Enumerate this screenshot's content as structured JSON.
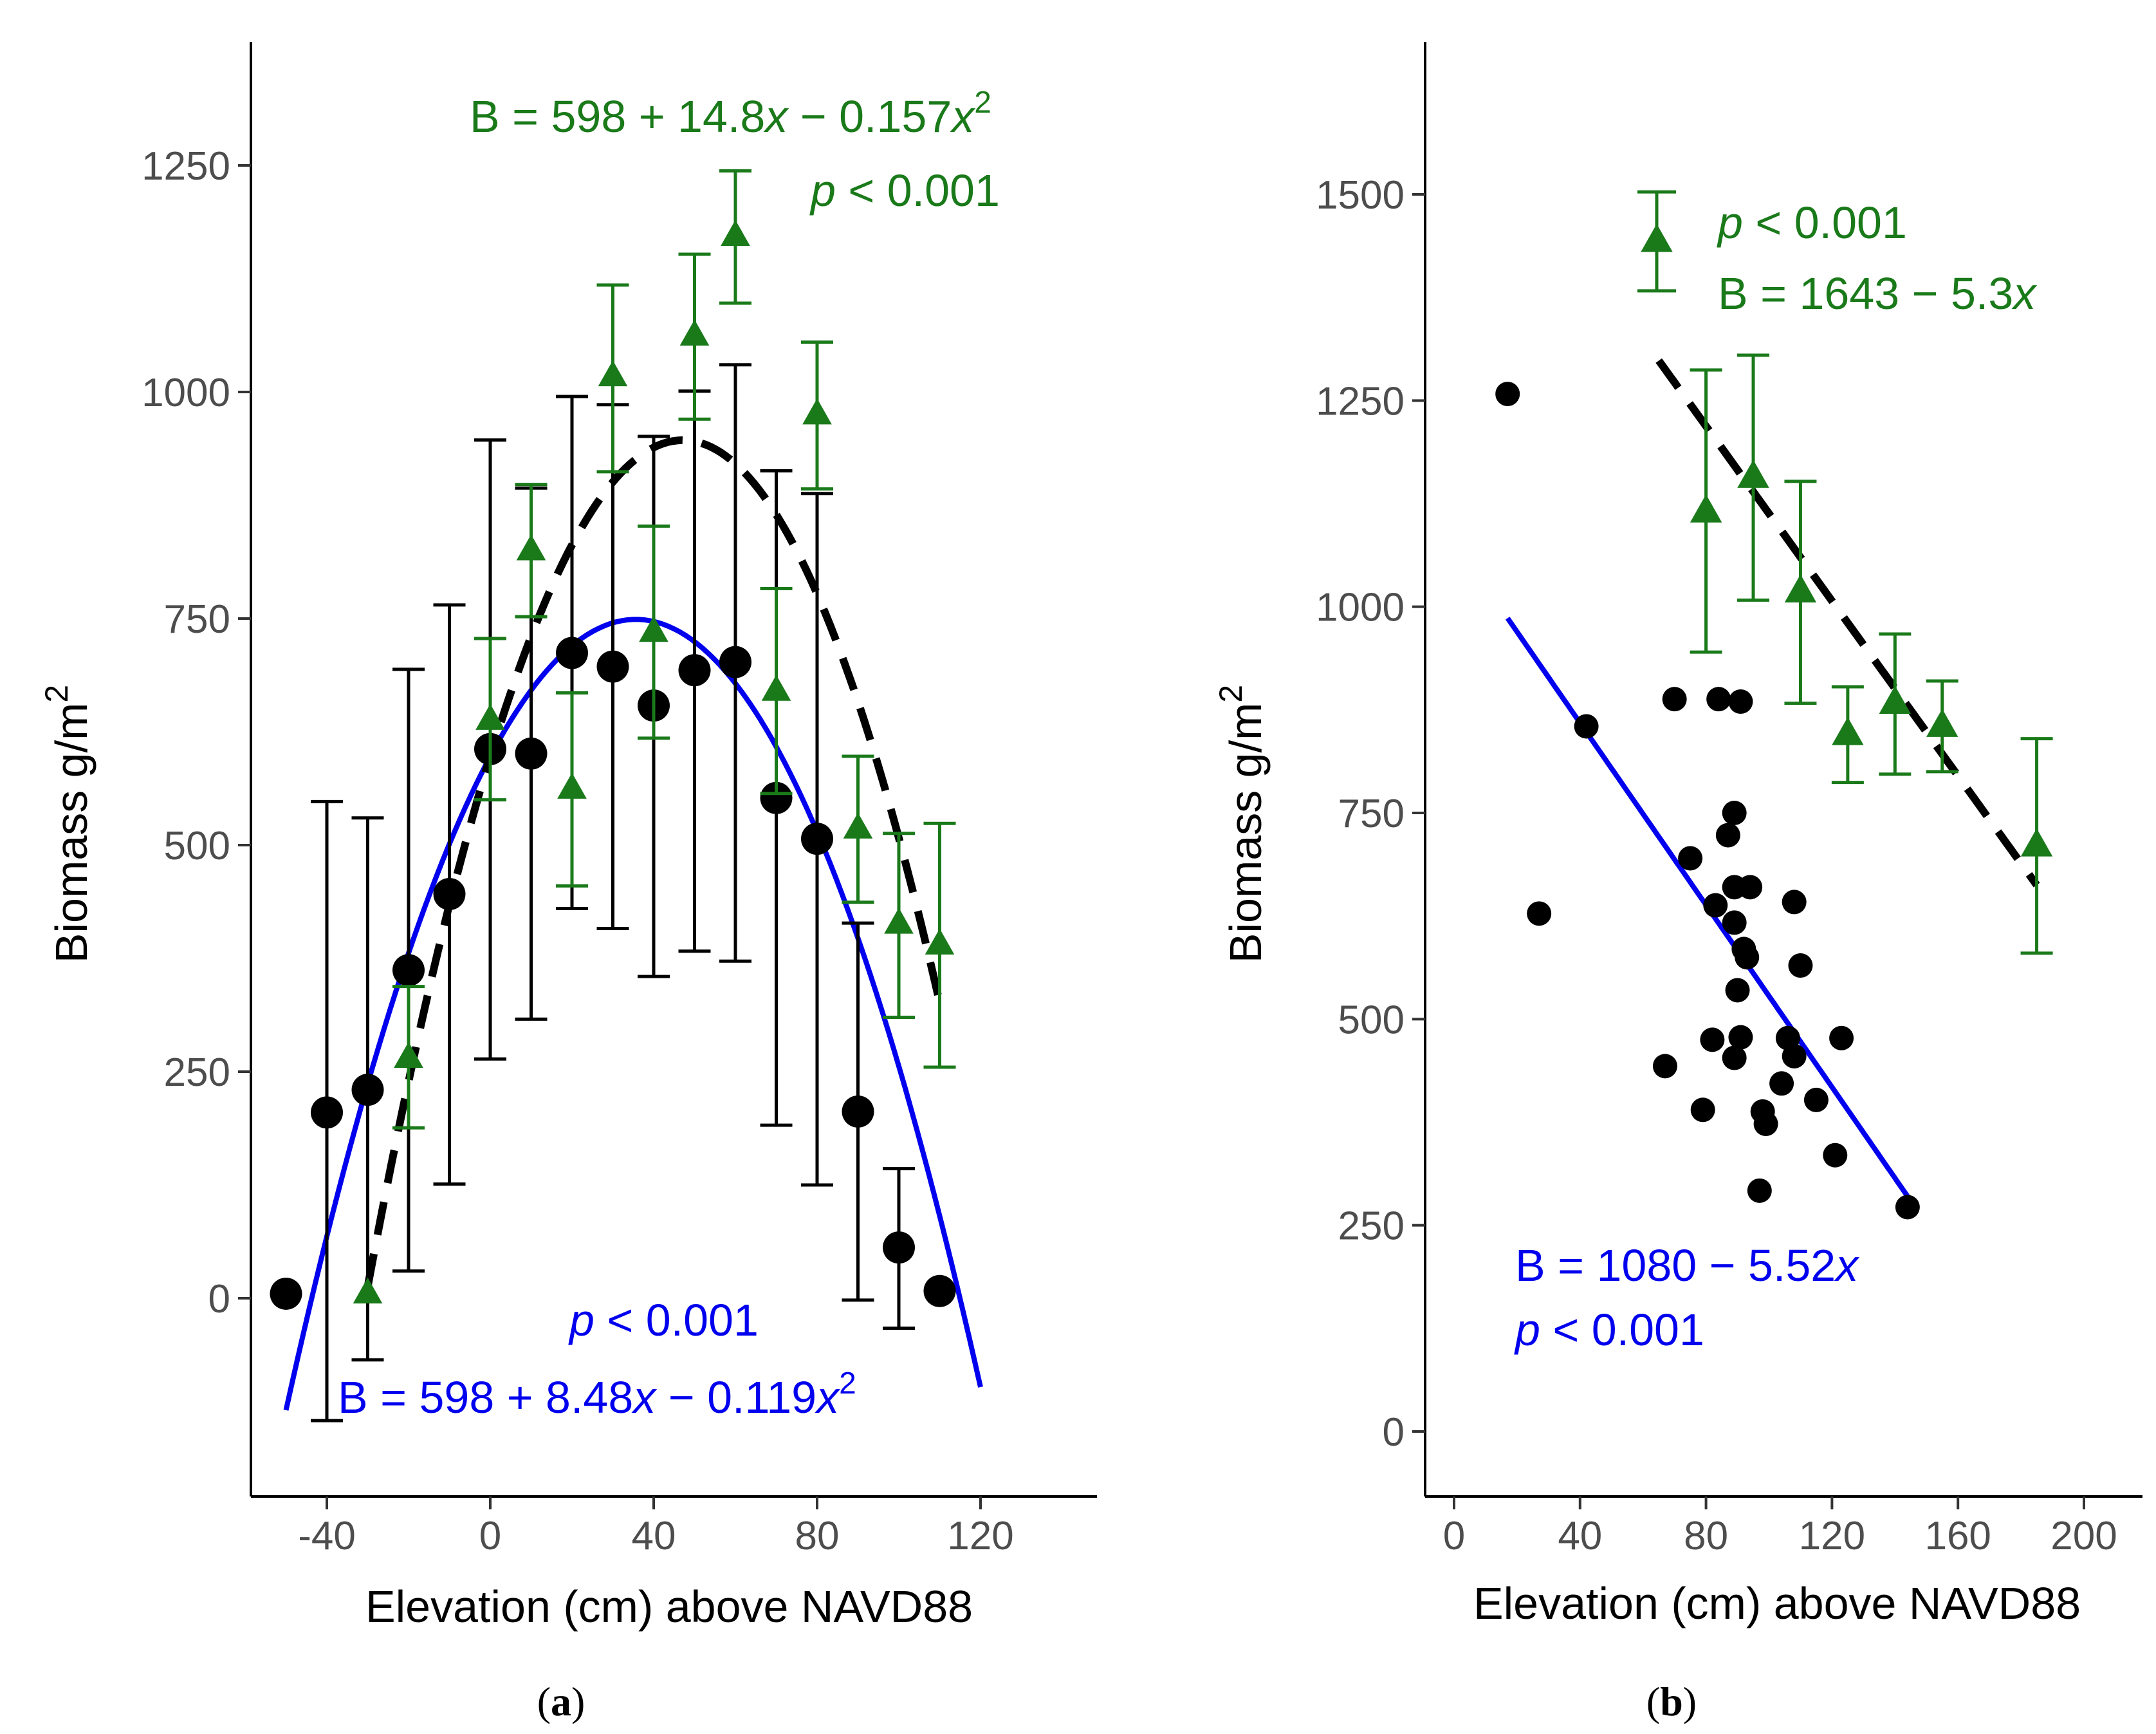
{
  "colors": {
    "green": "#1a7a1a",
    "blue": "#0000ee",
    "black": "#000000",
    "tick": "#4d4d4d"
  },
  "chart_data": [
    {
      "type": "scatter",
      "panel_label": "(a)",
      "panel_letter": "a",
      "xlabel": "Elevation (cm) above NAVD88",
      "ylabel": "Biomass g/m",
      "ylabel_sup": "2",
      "xlim": [
        -62,
        148
      ],
      "ylim": [
        -220,
        1380
      ],
      "xticks": [
        -40,
        0,
        40,
        80,
        120
      ],
      "yticks": [
        0,
        250,
        500,
        750,
        1000,
        1250
      ],
      "series": [
        {
          "name": "black circles",
          "marker": "circle",
          "color": "#000000",
          "points": [
            {
              "x": -50,
              "y": 5
            },
            {
              "x": -40,
              "y": 205,
              "lo": -135,
              "hi": 548
            },
            {
              "x": -30,
              "y": 230,
              "lo": -68,
              "hi": 530
            },
            {
              "x": -20,
              "y": 362,
              "lo": 30,
              "hi": 694
            },
            {
              "x": -10,
              "y": 446,
              "lo": 126,
              "hi": 765
            },
            {
              "x": 0,
              "y": 606,
              "lo": 264,
              "hi": 947
            },
            {
              "x": 10,
              "y": 601,
              "lo": 308,
              "hi": 894
            },
            {
              "x": 20,
              "y": 712,
              "lo": 430,
              "hi": 995
            },
            {
              "x": 30,
              "y": 697,
              "lo": 408,
              "hi": 986
            },
            {
              "x": 40,
              "y": 654,
              "lo": 355,
              "hi": 951
            },
            {
              "x": 50,
              "y": 693,
              "lo": 383,
              "hi": 1001
            },
            {
              "x": 60,
              "y": 702,
              "lo": 372,
              "hi": 1030
            },
            {
              "x": 70,
              "y": 552,
              "lo": 191,
              "hi": 913
            },
            {
              "x": 80,
              "y": 507,
              "lo": 125,
              "hi": 888
            },
            {
              "x": 90,
              "y": 206,
              "lo": -2,
              "hi": 414
            },
            {
              "x": 100,
              "y": 56,
              "lo": -33,
              "hi": 143
            },
            {
              "x": 110,
              "y": 8
            }
          ]
        },
        {
          "name": "green triangles",
          "marker": "triangle",
          "color": "#1a7a1a",
          "points": [
            {
              "x": -30,
              "y": 5
            },
            {
              "x": -20,
              "y": 265,
              "lo": 188,
              "hi": 344
            },
            {
              "x": 0,
              "y": 638,
              "lo": 550,
              "hi": 728
            },
            {
              "x": 10,
              "y": 825,
              "lo": 752,
              "hi": 898
            },
            {
              "x": 20,
              "y": 562,
              "lo": 455,
              "hi": 668
            },
            {
              "x": 30,
              "y": 1017,
              "lo": 912,
              "hi": 1118
            },
            {
              "x": 40,
              "y": 735,
              "lo": 618,
              "hi": 852
            },
            {
              "x": 50,
              "y": 1062,
              "lo": 970,
              "hi": 1152
            },
            {
              "x": 60,
              "y": 1172,
              "lo": 1098,
              "hi": 1244
            },
            {
              "x": 70,
              "y": 670,
              "lo": 557,
              "hi": 783
            },
            {
              "x": 80,
              "y": 975,
              "lo": 893,
              "hi": 1055
            },
            {
              "x": 90,
              "y": 518,
              "lo": 437,
              "hi": 598
            },
            {
              "x": 100,
              "y": 413,
              "lo": 310,
              "hi": 513
            },
            {
              "x": 110,
              "y": 390,
              "lo": 255,
              "hi": 524
            }
          ]
        },
        {
          "name": "blue quadratic fit",
          "type": "line",
          "color": "#0000ee",
          "style": "solid",
          "equation": {
            "a": 598,
            "b": 8.48,
            "c": -0.119
          },
          "x_range": [
            -50,
            120
          ]
        },
        {
          "name": "black dashed quadratic fit",
          "type": "line",
          "color": "#000000",
          "style": "dashed",
          "equation": {
            "a": 598,
            "b": 14.8,
            "c": -0.157
          },
          "x_range": [
            -30,
            110
          ]
        }
      ],
      "annotations": {
        "green_eq_1": "B  =  598",
        "green_eq_2": "14.8",
        "green_eq_3": "x",
        "green_eq_4": "0.157",
        "green_eq_5": "x",
        "green_eq_sup": "2",
        "green_p_1": "p",
        "green_p_2": "0.001",
        "blue_p_1": "p",
        "blue_p_2": "0.001",
        "blue_eq_1": "B  =  598",
        "blue_eq_2": "8.48",
        "blue_eq_3": "x",
        "blue_eq_4": "0.119",
        "blue_eq_5": "x",
        "blue_eq_sup": "2"
      }
    },
    {
      "type": "scatter",
      "panel_label": "(b)",
      "panel_letter": "b",
      "xlabel": "Elevation (cm) above NAVD88",
      "ylabel": "Biomass g/m",
      "ylabel_sup": "2",
      "xlim": [
        -10,
        220
      ],
      "ylim": [
        -75,
        1680
      ],
      "xticks": [
        0,
        40,
        80,
        120,
        160,
        200
      ],
      "yticks": [
        0,
        250,
        500,
        750,
        1000,
        1250,
        1500
      ],
      "series": [
        {
          "name": "black circles",
          "marker": "circle",
          "color": "#000000",
          "points": [
            {
              "x": 17,
              "y": 1258
            },
            {
              "x": 27,
              "y": 628
            },
            {
              "x": 42,
              "y": 855
            },
            {
              "x": 67,
              "y": 443
            },
            {
              "x": 70,
              "y": 888
            },
            {
              "x": 75,
              "y": 695
            },
            {
              "x": 79,
              "y": 390
            },
            {
              "x": 82,
              "y": 475
            },
            {
              "x": 83,
              "y": 638
            },
            {
              "x": 84,
              "y": 888
            },
            {
              "x": 87,
              "y": 723
            },
            {
              "x": 89,
              "y": 750
            },
            {
              "x": 89,
              "y": 660
            },
            {
              "x": 89,
              "y": 617
            },
            {
              "x": 89,
              "y": 453
            },
            {
              "x": 90,
              "y": 535
            },
            {
              "x": 91,
              "y": 885
            },
            {
              "x": 91,
              "y": 478
            },
            {
              "x": 92,
              "y": 585
            },
            {
              "x": 93,
              "y": 575
            },
            {
              "x": 94,
              "y": 660
            },
            {
              "x": 97,
              "y": 292
            },
            {
              "x": 98,
              "y": 388
            },
            {
              "x": 99,
              "y": 373
            },
            {
              "x": 104,
              "y": 422
            },
            {
              "x": 106,
              "y": 477
            },
            {
              "x": 108,
              "y": 642
            },
            {
              "x": 108,
              "y": 455
            },
            {
              "x": 110,
              "y": 565
            },
            {
              "x": 115,
              "y": 402
            },
            {
              "x": 121,
              "y": 335
            },
            {
              "x": 123,
              "y": 477
            },
            {
              "x": 144,
              "y": 272
            }
          ]
        },
        {
          "name": "green triangles",
          "marker": "triangle",
          "color": "#1a7a1a",
          "points": [
            {
              "x": 80,
              "y": 1115,
              "lo": 945,
              "hi": 1287
            },
            {
              "x": 95,
              "y": 1157,
              "lo": 1008,
              "hi": 1305
            },
            {
              "x": 110,
              "y": 1018,
              "lo": 883,
              "hi": 1152
            },
            {
              "x": 125,
              "y": 845,
              "lo": 787,
              "hi": 903
            },
            {
              "x": 140,
              "y": 883,
              "lo": 797,
              "hi": 967
            },
            {
              "x": 155,
              "y": 855,
              "lo": 800,
              "hi": 910
            },
            {
              "x": 185,
              "y": 710,
              "lo": 580,
              "hi": 840
            }
          ]
        },
        {
          "name": "blue linear fit",
          "type": "line",
          "color": "#0000ee",
          "style": "solid",
          "equation": {
            "a": 1080,
            "b": -5.52
          },
          "x_range": [
            17,
            144
          ]
        },
        {
          "name": "black dashed linear fit",
          "type": "line",
          "color": "#000000",
          "style": "dashed",
          "equation": {
            "a": 1643,
            "b": -5.3
          },
          "x_range": [
            65,
            185
          ]
        }
      ],
      "legend": {
        "placement": "top-left",
        "value": 1443,
        "lo": 1383,
        "hi": 1503
      },
      "annotations": {
        "green_p_1": "p",
        "green_p_2": "0.001",
        "green_eq_1": "B  =  1643",
        "green_eq_2": "5.3",
        "green_eq_3": "x",
        "blue_eq_1": "B  =  1080",
        "blue_eq_2": "5.52",
        "blue_eq_3": "x",
        "blue_p_1": "p",
        "blue_p_2": "0.001"
      }
    }
  ]
}
